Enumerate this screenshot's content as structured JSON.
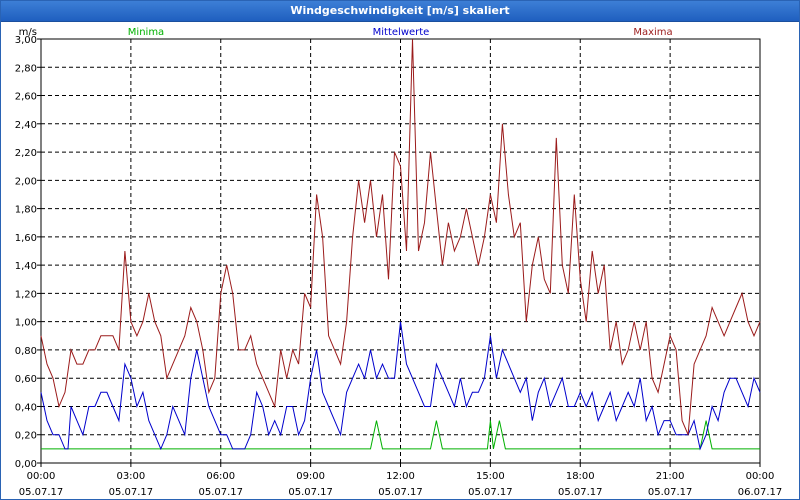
{
  "window": {
    "title": "Windgeschwindigkeit [m/s] skaliert"
  },
  "chart_data": {
    "type": "line",
    "title": "Windgeschwindigkeit [m/s] skaliert",
    "ylabel": "m/s",
    "ylim": [
      0,
      3.0
    ],
    "y_ticks": [
      "0,00",
      "0,20",
      "0,40",
      "0,60",
      "0,80",
      "1,00",
      "1,20",
      "1,40",
      "1,60",
      "1,80",
      "2,00",
      "2,20",
      "2,40",
      "2,60",
      "2,80",
      "3,00"
    ],
    "x_ticks": [
      {
        "time": "00:00",
        "date": "05.07.17"
      },
      {
        "time": "03:00",
        "date": "05.07.17"
      },
      {
        "time": "06:00",
        "date": "05.07.17"
      },
      {
        "time": "09:00",
        "date": "05.07.17"
      },
      {
        "time": "12:00",
        "date": "05.07.17"
      },
      {
        "time": "15:00",
        "date": "05.07.17"
      },
      {
        "time": "18:00",
        "date": "05.07.17"
      },
      {
        "time": "21:00",
        "date": "05.07.17"
      },
      {
        "time": "00:00",
        "date": "06.07.17"
      }
    ],
    "x_range_hours": [
      0,
      24
    ],
    "grid": true,
    "legend_position": "top",
    "series": [
      {
        "name": "Minima",
        "color": "#00b000",
        "x": [
          0,
          11,
          11.2,
          11.4,
          13,
          13.2,
          13.4,
          14.9,
          15.0,
          15.1,
          15.3,
          15.5,
          15.7,
          22,
          22.2,
          22.4,
          24
        ],
        "values": [
          0.1,
          0.1,
          0.3,
          0.1,
          0.1,
          0.3,
          0.1,
          0.1,
          0.3,
          0.1,
          0.3,
          0.1,
          0.1,
          0.1,
          0.3,
          0.1,
          0.1
        ]
      },
      {
        "name": "Mittelwerte",
        "color": "#0000cc",
        "x": [
          0,
          0.2,
          0.4,
          0.6,
          0.8,
          0.9,
          1.0,
          1.2,
          1.4,
          1.6,
          1.8,
          2.0,
          2.2,
          2.4,
          2.6,
          2.8,
          3.0,
          3.2,
          3.4,
          3.6,
          3.8,
          4.0,
          4.2,
          4.4,
          4.6,
          4.8,
          5.0,
          5.2,
          5.4,
          5.6,
          5.8,
          6.0,
          6.2,
          6.4,
          6.6,
          6.8,
          7.0,
          7.2,
          7.4,
          7.6,
          7.8,
          8.0,
          8.2,
          8.4,
          8.6,
          8.8,
          9.0,
          9.2,
          9.4,
          9.6,
          9.8,
          10.0,
          10.2,
          10.4,
          10.6,
          10.8,
          11.0,
          11.2,
          11.4,
          11.6,
          11.8,
          12.0,
          12.2,
          12.4,
          12.6,
          12.8,
          13.0,
          13.2,
          13.4,
          13.6,
          13.8,
          14.0,
          14.2,
          14.4,
          14.6,
          14.8,
          15.0,
          15.2,
          15.4,
          15.6,
          15.8,
          16.0,
          16.2,
          16.4,
          16.6,
          16.8,
          17.0,
          17.2,
          17.4,
          17.6,
          17.8,
          18.0,
          18.2,
          18.4,
          18.6,
          18.8,
          19.0,
          19.2,
          19.4,
          19.6,
          19.8,
          20.0,
          20.2,
          20.4,
          20.6,
          20.8,
          21.0,
          21.2,
          21.4,
          21.6,
          21.8,
          22.0,
          22.2,
          22.4,
          22.6,
          22.8,
          23.0,
          23.2,
          23.4,
          23.6,
          23.8,
          24.0
        ],
        "values": [
          0.5,
          0.3,
          0.2,
          0.2,
          0.1,
          0.1,
          0.4,
          0.3,
          0.2,
          0.4,
          0.4,
          0.5,
          0.5,
          0.4,
          0.3,
          0.7,
          0.6,
          0.4,
          0.5,
          0.3,
          0.2,
          0.1,
          0.2,
          0.4,
          0.3,
          0.2,
          0.6,
          0.8,
          0.6,
          0.4,
          0.3,
          0.2,
          0.2,
          0.1,
          0.1,
          0.1,
          0.2,
          0.5,
          0.4,
          0.2,
          0.3,
          0.2,
          0.4,
          0.4,
          0.2,
          0.3,
          0.6,
          0.8,
          0.5,
          0.4,
          0.3,
          0.2,
          0.5,
          0.6,
          0.7,
          0.6,
          0.8,
          0.6,
          0.7,
          0.6,
          0.6,
          1.0,
          0.7,
          0.6,
          0.5,
          0.4,
          0.4,
          0.7,
          0.6,
          0.5,
          0.4,
          0.6,
          0.4,
          0.5,
          0.5,
          0.6,
          0.9,
          0.6,
          0.8,
          0.7,
          0.6,
          0.5,
          0.6,
          0.3,
          0.5,
          0.6,
          0.4,
          0.5,
          0.6,
          0.4,
          0.4,
          0.5,
          0.4,
          0.5,
          0.3,
          0.4,
          0.5,
          0.3,
          0.4,
          0.5,
          0.4,
          0.6,
          0.3,
          0.4,
          0.2,
          0.3,
          0.3,
          0.2,
          0.2,
          0.2,
          0.3,
          0.1,
          0.2,
          0.4,
          0.3,
          0.5,
          0.6,
          0.6,
          0.5,
          0.4,
          0.6,
          0.5
        ],
        "note_legend_only": false
      },
      {
        "name": "Maxima",
        "color": "#9b1b1b",
        "x": [
          0,
          0.2,
          0.4,
          0.6,
          0.8,
          1.0,
          1.2,
          1.4,
          1.6,
          1.8,
          2.0,
          2.2,
          2.4,
          2.6,
          2.8,
          3.0,
          3.2,
          3.4,
          3.6,
          3.8,
          4.0,
          4.2,
          4.4,
          4.6,
          4.8,
          5.0,
          5.2,
          5.4,
          5.6,
          5.8,
          6.0,
          6.2,
          6.4,
          6.6,
          6.8,
          7.0,
          7.2,
          7.4,
          7.6,
          7.8,
          8.0,
          8.2,
          8.4,
          8.6,
          8.8,
          9.0,
          9.2,
          9.4,
          9.6,
          9.8,
          10.0,
          10.2,
          10.4,
          10.6,
          10.8,
          11.0,
          11.2,
          11.4,
          11.6,
          11.8,
          12.0,
          12.2,
          12.4,
          12.6,
          12.8,
          13.0,
          13.2,
          13.4,
          13.6,
          13.8,
          14.0,
          14.2,
          14.4,
          14.6,
          14.8,
          15.0,
          15.2,
          15.4,
          15.6,
          15.8,
          16.0,
          16.2,
          16.4,
          16.6,
          16.8,
          17.0,
          17.2,
          17.4,
          17.6,
          17.8,
          18.0,
          18.2,
          18.4,
          18.6,
          18.8,
          19.0,
          19.2,
          19.4,
          19.6,
          19.8,
          20.0,
          20.2,
          20.4,
          20.6,
          20.8,
          21.0,
          21.2,
          21.4,
          21.6,
          21.8,
          22.0,
          22.2,
          22.4,
          22.6,
          22.8,
          23.0,
          23.2,
          23.4,
          23.6,
          23.8,
          24.0
        ],
        "values": [
          0.9,
          0.7,
          0.6,
          0.4,
          0.5,
          0.8,
          0.7,
          0.7,
          0.8,
          0.8,
          0.9,
          0.9,
          0.9,
          0.8,
          1.5,
          1.0,
          0.9,
          1.0,
          1.2,
          1.0,
          0.9,
          0.6,
          0.7,
          0.8,
          0.9,
          1.1,
          1.0,
          0.8,
          0.5,
          0.6,
          1.2,
          1.4,
          1.2,
          0.8,
          0.8,
          0.9,
          0.7,
          0.6,
          0.5,
          0.4,
          0.8,
          0.6,
          0.8,
          0.7,
          1.2,
          1.1,
          1.9,
          1.6,
          0.9,
          0.8,
          0.7,
          1.0,
          1.6,
          2.0,
          1.7,
          2.0,
          1.6,
          1.9,
          1.3,
          2.2,
          2.1,
          1.5,
          3.0,
          1.5,
          1.7,
          2.2,
          1.8,
          1.4,
          1.7,
          1.5,
          1.6,
          1.8,
          1.6,
          1.4,
          1.6,
          1.9,
          1.7,
          2.4,
          1.9,
          1.6,
          1.7,
          1.0,
          1.4,
          1.6,
          1.3,
          1.2,
          2.3,
          1.4,
          1.2,
          1.9,
          1.3,
          1.0,
          1.5,
          1.2,
          1.4,
          0.8,
          1.0,
          0.7,
          0.8,
          1.0,
          0.8,
          1.0,
          0.6,
          0.5,
          0.7,
          0.9,
          0.8,
          0.3,
          0.2,
          0.7,
          0.8,
          0.9,
          1.1,
          1.0,
          0.9,
          1.0,
          1.1,
          1.2,
          1.0,
          0.9,
          1.0
        ]
      }
    ]
  }
}
